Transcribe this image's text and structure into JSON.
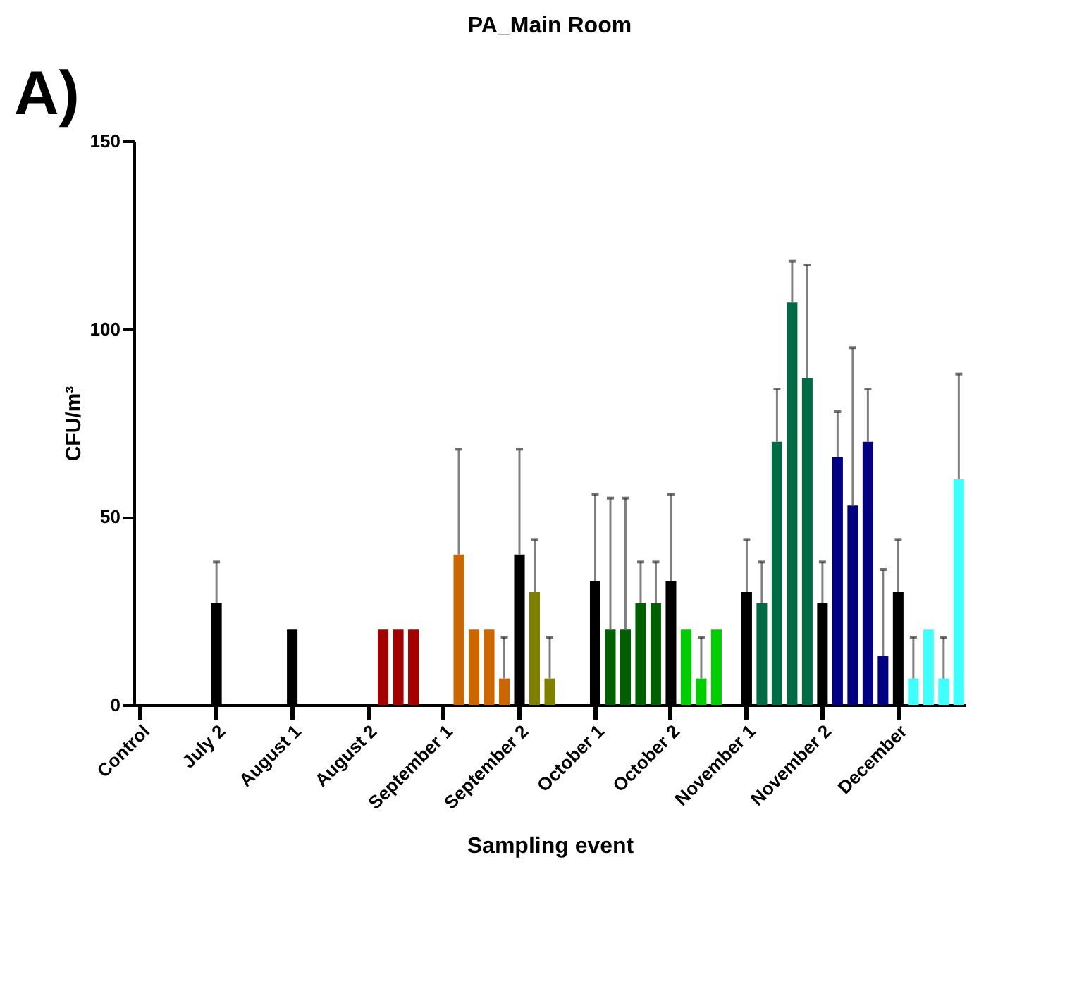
{
  "chart_data": {
    "type": "bar",
    "title": "PA_Main Room",
    "xlabel": "Sampling event",
    "ylabel": "CFU/m³",
    "annotations": [
      "A)"
    ],
    "categories": [
      "Control",
      null,
      null,
      null,
      null,
      "July 2",
      null,
      null,
      null,
      null,
      "August 1",
      null,
      null,
      null,
      null,
      "August 2",
      null,
      null,
      null,
      null,
      "September 1",
      null,
      null,
      null,
      null,
      "September 2",
      null,
      null,
      null,
      null,
      "October 1",
      null,
      null,
      null,
      null,
      "October 2",
      null,
      null,
      null,
      null,
      "November 1",
      null,
      null,
      null,
      null,
      "November 2",
      null,
      null,
      null,
      null,
      "December",
      null,
      null,
      null,
      null
    ],
    "values": [
      0,
      null,
      null,
      null,
      null,
      27,
      null,
      null,
      null,
      null,
      20,
      null,
      null,
      null,
      null,
      0,
      20,
      20,
      20,
      null,
      0,
      40,
      20,
      20,
      7,
      40,
      30,
      7,
      null,
      null,
      33,
      20,
      20,
      27,
      27,
      33,
      20,
      7,
      20,
      null,
      30,
      27,
      70,
      107,
      87,
      27,
      66,
      53,
      70,
      13,
      30,
      7,
      20,
      7,
      60
    ],
    "errors": [
      null,
      null,
      null,
      null,
      null,
      [
        27,
        38
      ],
      null,
      null,
      null,
      null,
      null,
      null,
      null,
      null,
      null,
      null,
      null,
      null,
      null,
      null,
      null,
      [
        40,
        68
      ],
      null,
      null,
      [
        7,
        18
      ],
      [
        40,
        68
      ],
      [
        30,
        44
      ],
      [
        7,
        18
      ],
      null,
      null,
      [
        33,
        56
      ],
      [
        20,
        55
      ],
      [
        20,
        55
      ],
      [
        27,
        38
      ],
      [
        27,
        38
      ],
      [
        33,
        56
      ],
      null,
      [
        7,
        18
      ],
      null,
      null,
      [
        30,
        44
      ],
      [
        27,
        38
      ],
      [
        70,
        84
      ],
      [
        107,
        118
      ],
      [
        87,
        117
      ],
      [
        27,
        38
      ],
      [
        66,
        78
      ],
      [
        53,
        95
      ],
      [
        70,
        84
      ],
      [
        13,
        36
      ],
      [
        30,
        44
      ],
      [
        7,
        18
      ],
      null,
      [
        7,
        18
      ],
      [
        60,
        88
      ]
    ],
    "colors": [
      "#000000",
      "#000000",
      "#000000",
      "#000000",
      "#000000",
      "#000000",
      "#000000",
      "#000000",
      "#000000",
      "#000000",
      "#000000",
      "#000000",
      "#000000",
      "#000000",
      "#000000",
      "#000000",
      "#a50000",
      "#a50000",
      "#a50000",
      "#a50000",
      "#000000",
      "#cc6600",
      "#cc6600",
      "#cc6600",
      "#cc6600",
      "#000000",
      "#808000",
      "#808000",
      "#808000",
      "#808000",
      "#000000",
      "#006000",
      "#006000",
      "#006000",
      "#006000",
      "#000000",
      "#00cc00",
      "#00cc00",
      "#00cc00",
      "#00cc00",
      "#000000",
      "#006b45",
      "#006b45",
      "#006b45",
      "#006b45",
      "#000000",
      "#000080",
      "#000080",
      "#000080",
      "#000080",
      "#000000",
      "#40ffff",
      "#40ffff",
      "#40ffff",
      "#40ffff"
    ],
    "ylim": [
      0,
      150
    ],
    "yticks": [
      0,
      50,
      100,
      150
    ],
    "grid": false
  }
}
